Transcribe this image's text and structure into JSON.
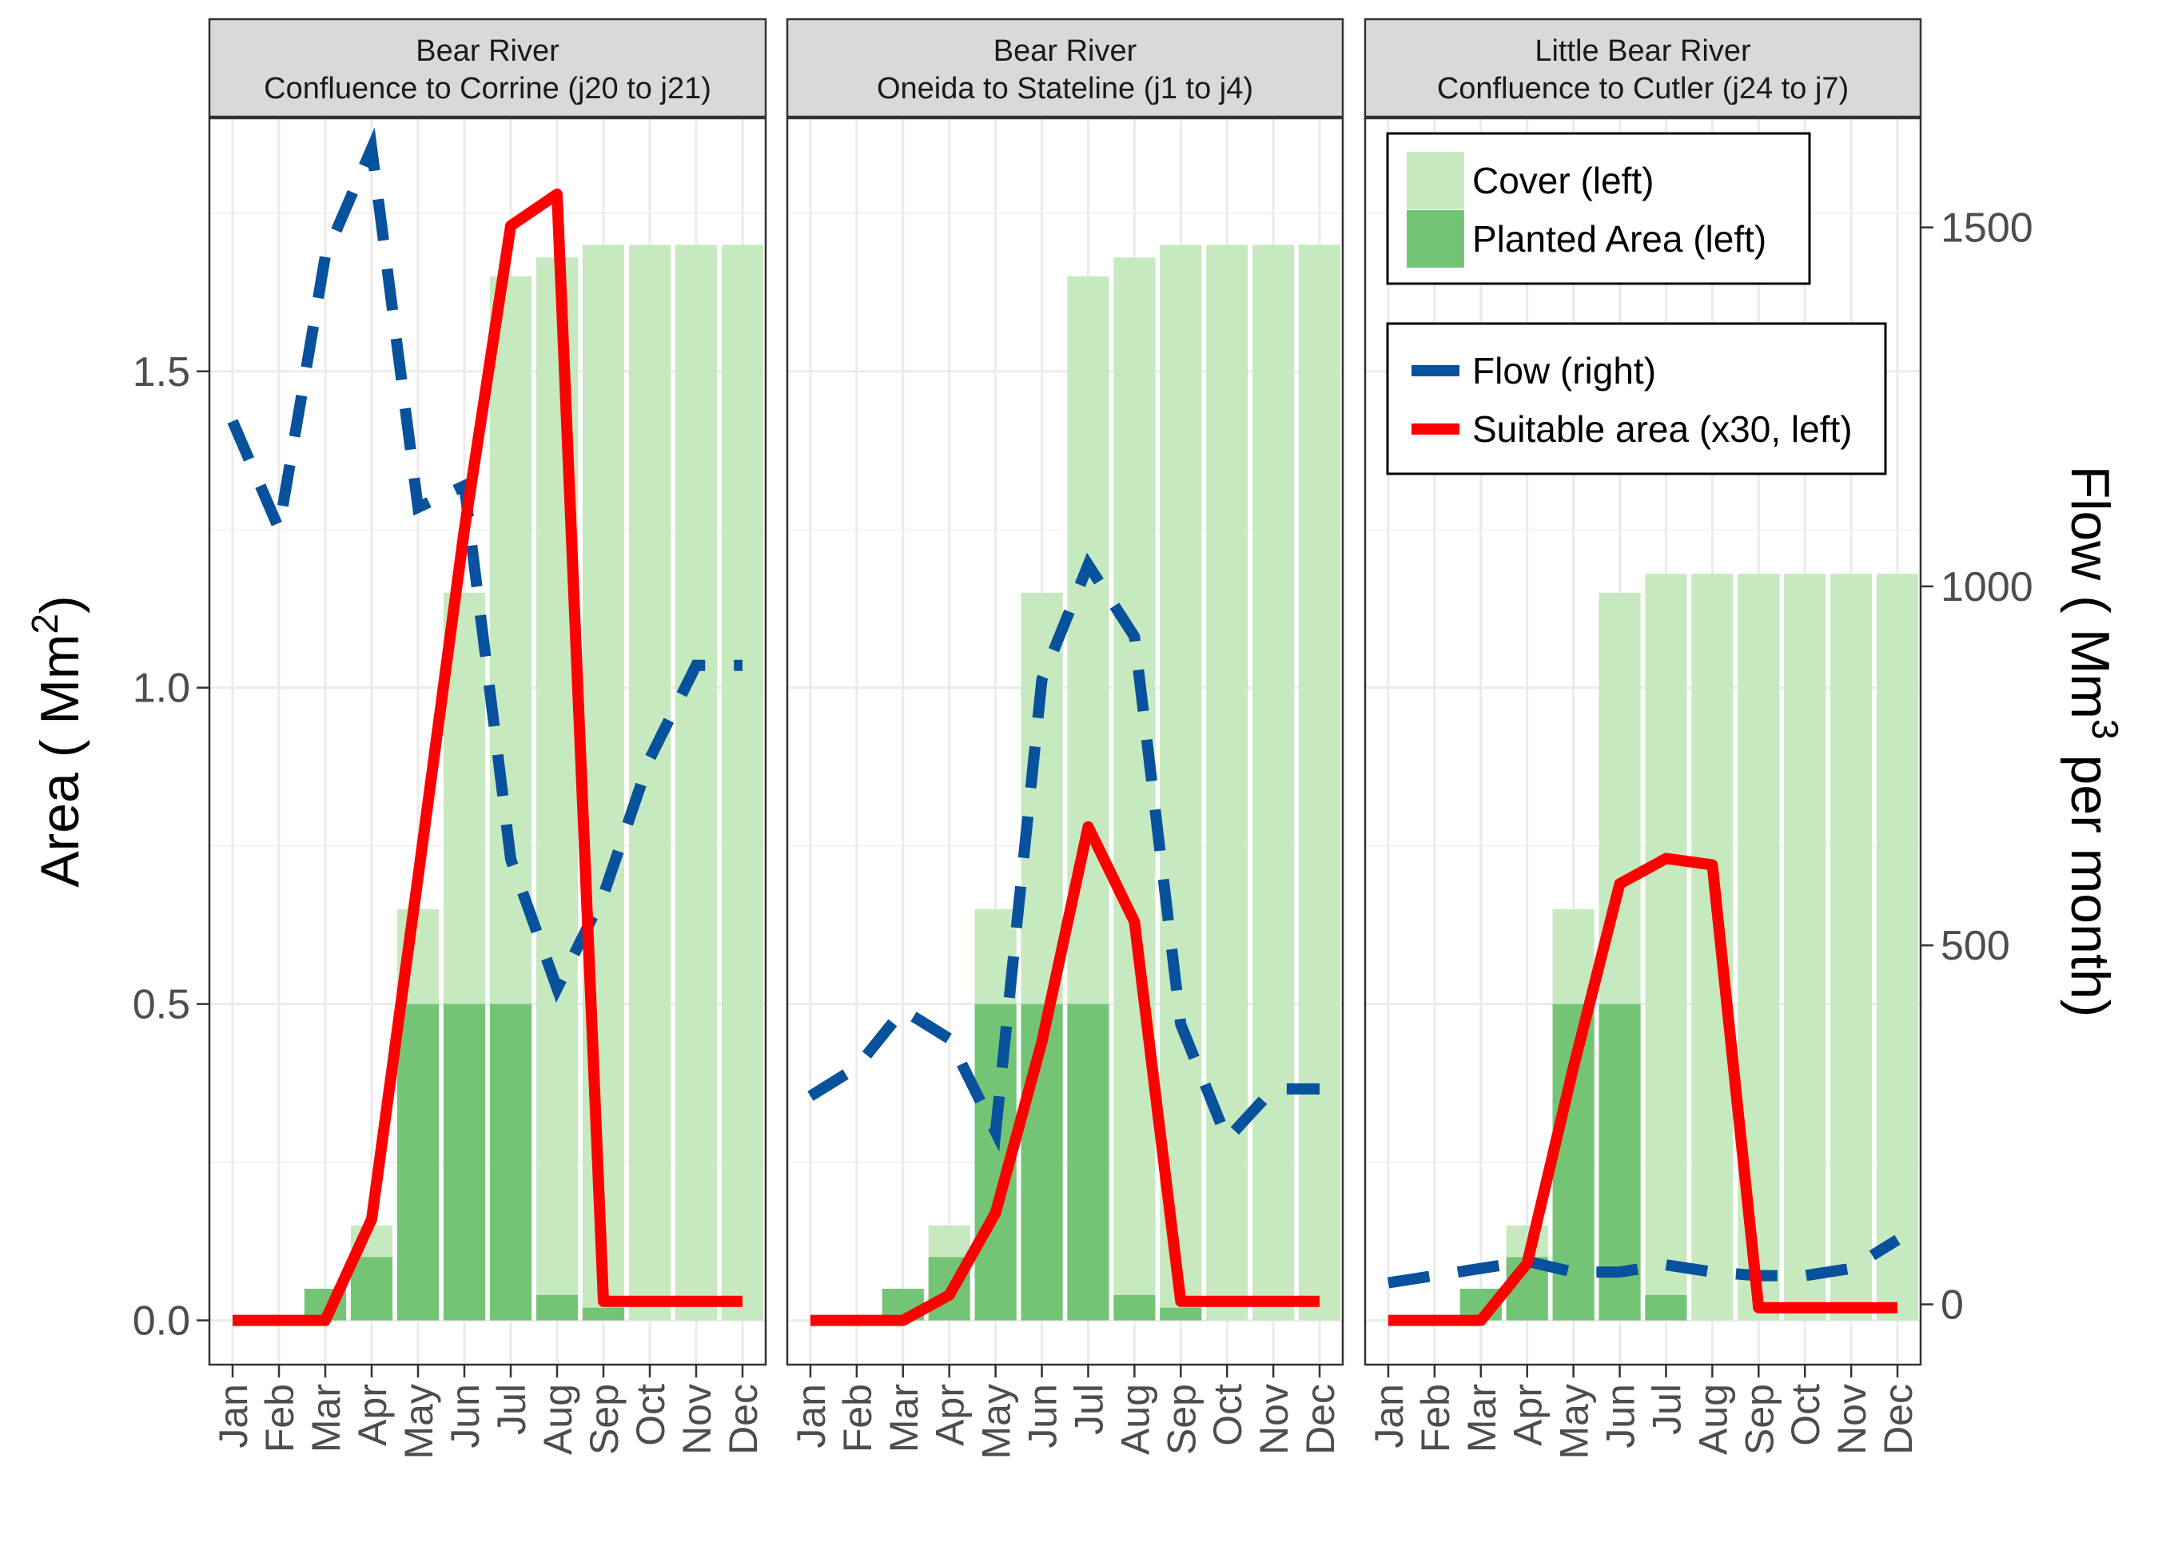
{
  "chart_data": {
    "type": "bar",
    "months": [
      "Jan",
      "Feb",
      "Mar",
      "Apr",
      "May",
      "Jun",
      "Jul",
      "Aug",
      "Sep",
      "Oct",
      "Nov",
      "Dec"
    ],
    "left_axis": {
      "label": "Area ( Mm",
      "label_sup": "2",
      "label_end": ")",
      "ylim": [
        -0.07,
        1.9
      ],
      "ticks": [
        0.0,
        0.5,
        1.0,
        1.5
      ],
      "tick_labels": [
        "0.0",
        "0.5",
        "1.0",
        "1.5"
      ]
    },
    "right_axis": {
      "label": "Flow ( Mm",
      "label_sup": "3",
      "label_end": " per month)",
      "ylim": [
        -84,
        1652
      ],
      "ticks": [
        0,
        500,
        1000,
        1500
      ],
      "tick_labels": [
        "0",
        "500",
        "1000",
        "1500"
      ]
    },
    "legend_bars": {
      "placement": "top-right",
      "items": [
        {
          "name": "Cover (left)",
          "color": "#c7e9c0"
        },
        {
          "name": "Planted Area (left)",
          "color": "#74c476"
        }
      ]
    },
    "legend_lines": {
      "placement": "top-right",
      "items": [
        {
          "name": "Flow (right)",
          "color": "#08519c",
          "style": "dashed"
        },
        {
          "name": "Suitable area (x30, left)",
          "color": "#ff0000",
          "style": "solid"
        }
      ]
    },
    "grid": true,
    "colors": {
      "cover": "#c7e9c0",
      "planted": "#74c476",
      "flow": "#08519c",
      "suitable": "#ff0000",
      "strip": "#d9d9d9"
    },
    "panels": [
      {
        "title_line1": "Bear River",
        "title_line2": "Confluence to Corrine (j20 to j21)",
        "cover": [
          0,
          0,
          0.05,
          0.15,
          0.65,
          1.15,
          1.65,
          1.68,
          1.7,
          1.7,
          1.7,
          1.7
        ],
        "planted": [
          0,
          0,
          0.05,
          0.1,
          0.5,
          0.5,
          0.5,
          0.04,
          0.02,
          0,
          0,
          0
        ],
        "suitable": [
          0,
          0,
          0,
          0.16,
          0.7,
          1.25,
          1.73,
          1.78,
          0.03,
          0.03,
          0.03,
          0.03
        ],
        "flow": [
          1230,
          1080,
          1460,
          1610,
          1110,
          1140,
          620,
          440,
          570,
          760,
          890,
          890
        ]
      },
      {
        "title_line1": "Bear River",
        "title_line2": "Oneida to Stateline (j1 to j4)",
        "cover": [
          0,
          0,
          0.05,
          0.15,
          0.65,
          1.15,
          1.65,
          1.68,
          1.7,
          1.7,
          1.7,
          1.7
        ],
        "planted": [
          0,
          0,
          0.05,
          0.1,
          0.5,
          0.5,
          0.5,
          0.04,
          0.02,
          0,
          0,
          0
        ],
        "suitable": [
          0,
          0,
          0,
          0.04,
          0.17,
          0.44,
          0.78,
          0.63,
          0.03,
          0.03,
          0.03,
          0.03
        ],
        "flow": [
          290,
          330,
          410,
          370,
          240,
          870,
          1030,
          930,
          390,
          230,
          300,
          300
        ]
      },
      {
        "title_line1": "Little Bear River",
        "title_line2": "Confluence to Cutler (j24 to j7)",
        "cover": [
          0,
          0,
          0.05,
          0.15,
          0.65,
          1.15,
          1.18,
          1.18,
          1.18,
          1.18,
          1.18,
          1.18
        ],
        "planted": [
          0,
          0,
          0.05,
          0.1,
          0.5,
          0.5,
          0.04,
          0,
          0,
          0,
          0,
          0
        ],
        "suitable": [
          0,
          0,
          0,
          0.09,
          0.4,
          0.69,
          0.73,
          0.72,
          0.02,
          0.02,
          0.02,
          0.02
        ],
        "flow": [
          30,
          40,
          50,
          60,
          45,
          45,
          55,
          45,
          40,
          40,
          50,
          90
        ]
      }
    ]
  }
}
